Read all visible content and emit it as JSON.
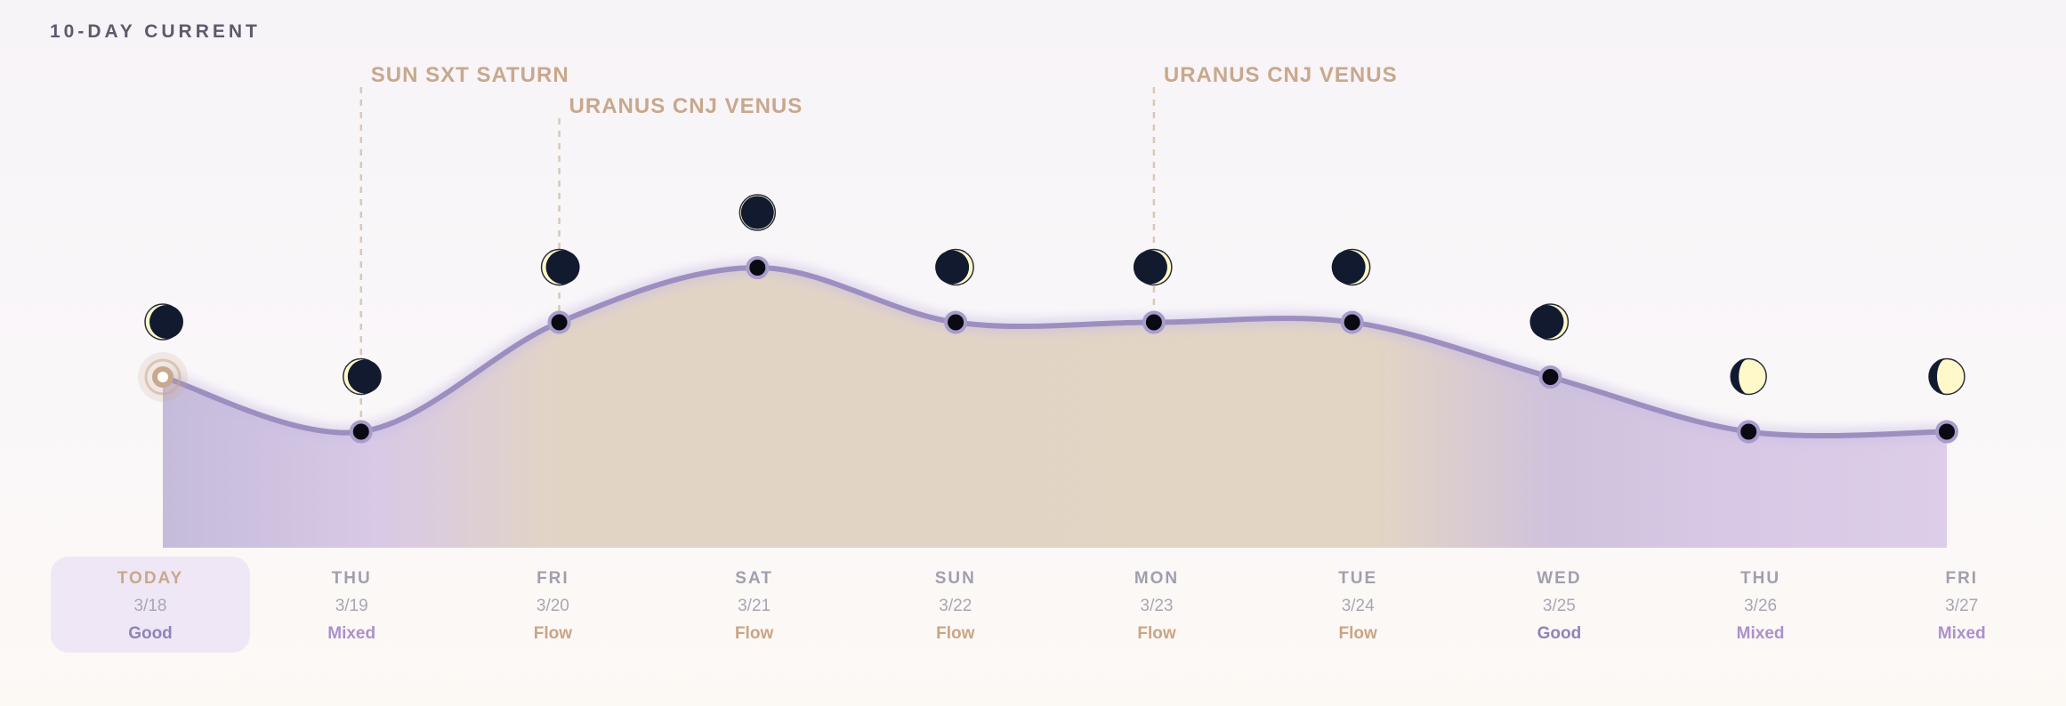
{
  "title": "10-DAY CURRENT",
  "colors": {
    "line": "#9c8fc0",
    "dot": "#0a0a12",
    "today_ring": "#c9a88c",
    "moon_dark": "#111a2e",
    "moon_light": "#fff8c8",
    "annotation": "#c8a88c",
    "fill_purple": "#c7b8dd",
    "fill_beige": "#e3d4c3"
  },
  "chart_data": {
    "type": "area",
    "categories": [
      "3/18",
      "3/19",
      "3/20",
      "3/21",
      "3/22",
      "3/23",
      "3/24",
      "3/25",
      "3/26",
      "3/27"
    ],
    "values": [
      4,
      3,
      5,
      6,
      5,
      5,
      5,
      4,
      3,
      3
    ],
    "ylim": [
      0,
      7
    ],
    "grid": false,
    "legend": "none",
    "annotations": [
      {
        "label": "SUN SXT SATURN",
        "index": 1
      },
      {
        "label": "URANUS CNJ VENUS",
        "index": 2
      },
      {
        "label": "URANUS CNJ VENUS",
        "index": 5
      }
    ]
  },
  "moons": [
    {
      "phase": "waning-crescent-thin"
    },
    {
      "phase": "waning-crescent-thin"
    },
    {
      "phase": "waning-crescent-thin"
    },
    {
      "phase": "new"
    },
    {
      "phase": "waxing-crescent-thin"
    },
    {
      "phase": "waxing-crescent-thin"
    },
    {
      "phase": "waxing-crescent-thin"
    },
    {
      "phase": "waxing-crescent-thin"
    },
    {
      "phase": "waxing-gibbous"
    },
    {
      "phase": "waxing-gibbous"
    }
  ],
  "days": [
    {
      "name": "TODAY",
      "date": "3/18",
      "label": "Good",
      "kind": "good",
      "today": true
    },
    {
      "name": "THU",
      "date": "3/19",
      "label": "Mixed",
      "kind": "mixed"
    },
    {
      "name": "FRI",
      "date": "3/20",
      "label": "Flow",
      "kind": "flow"
    },
    {
      "name": "SAT",
      "date": "3/21",
      "label": "Flow",
      "kind": "flow"
    },
    {
      "name": "SUN",
      "date": "3/22",
      "label": "Flow",
      "kind": "flow"
    },
    {
      "name": "MON",
      "date": "3/23",
      "label": "Flow",
      "kind": "flow"
    },
    {
      "name": "TUE",
      "date": "3/24",
      "label": "Flow",
      "kind": "flow"
    },
    {
      "name": "WED",
      "date": "3/25",
      "label": "Good",
      "kind": "good"
    },
    {
      "name": "THU",
      "date": "3/26",
      "label": "Mixed",
      "kind": "mixed"
    },
    {
      "name": "FRI",
      "date": "3/27",
      "label": "Mixed",
      "kind": "mixed"
    }
  ]
}
